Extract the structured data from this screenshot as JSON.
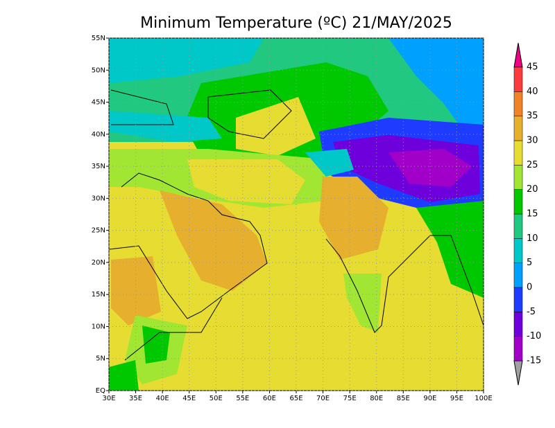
{
  "title": "Minimum Temperature (ºC) 21/MAY/2025",
  "map": {
    "xlim": [
      30,
      100
    ],
    "ylim": [
      0,
      55
    ],
    "xticks": [
      {
        "value": 30,
        "label": "30E"
      },
      {
        "value": 35,
        "label": "35E"
      },
      {
        "value": 40,
        "label": "40E"
      },
      {
        "value": 45,
        "label": "45E"
      },
      {
        "value": 50,
        "label": "50E"
      },
      {
        "value": 55,
        "label": "55E"
      },
      {
        "value": 60,
        "label": "60E"
      },
      {
        "value": 65,
        "label": "65E"
      },
      {
        "value": 70,
        "label": "70E"
      },
      {
        "value": 75,
        "label": "75E"
      },
      {
        "value": 80,
        "label": "80E"
      },
      {
        "value": 85,
        "label": "85E"
      },
      {
        "value": 90,
        "label": "90E"
      },
      {
        "value": 95,
        "label": "95E"
      },
      {
        "value": 100,
        "label": "100E"
      }
    ],
    "yticks": [
      {
        "value": 0,
        "label": "EQ"
      },
      {
        "value": 5,
        "label": "5N"
      },
      {
        "value": 10,
        "label": "10N"
      },
      {
        "value": 15,
        "label": "15N"
      },
      {
        "value": 20,
        "label": "20N"
      },
      {
        "value": 25,
        "label": "25N"
      },
      {
        "value": 30,
        "label": "30N"
      },
      {
        "value": 35,
        "label": "35N"
      },
      {
        "value": 40,
        "label": "40N"
      },
      {
        "value": 45,
        "label": "45N"
      },
      {
        "value": 50,
        "label": "50N"
      },
      {
        "value": 55,
        "label": "55N"
      }
    ],
    "grid": true
  },
  "colorbar": {
    "levels": [
      -15,
      -10,
      -5,
      0,
      5,
      10,
      15,
      20,
      25,
      30,
      35,
      40,
      45
    ],
    "colors": [
      "#a0a0a0",
      "#a000c8",
      "#6e00dc",
      "#1e3cff",
      "#00a0ff",
      "#00c8c8",
      "#20c880",
      "#00c800",
      "#a0e632",
      "#e6dc32",
      "#e6af2d",
      "#f08228",
      "#fa3c3c",
      "#f00082"
    ]
  }
}
